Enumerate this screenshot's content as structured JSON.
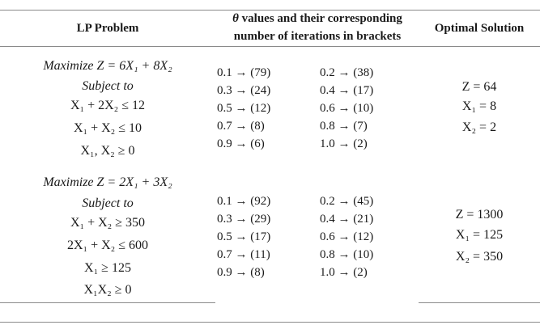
{
  "header": {
    "col1": "LP Problem",
    "col2_symbol": "θ",
    "col2_line1": " values and their corresponding",
    "col2_line2": "number of iterations in brackets",
    "col3": "Optimal Solution"
  },
  "problems": [
    {
      "lines": [
        "Maximize  Z = 6X₁ + 8X₂",
        "Subject to",
        "X₁ + 2X₂ ≤ 12",
        "X₁ + X₂ ≤ 10",
        "X₁, X₂ ≥ 0"
      ],
      "iterations": [
        [
          "0.1  →  (79)",
          "0.2  →  (38)"
        ],
        [
          "0.3  →  (24)",
          "0.4  →  (17)"
        ],
        [
          "0.5  →  (12)",
          "0.6  →  (10)"
        ],
        [
          "0.7  →  (8)",
          "0.8  →  (7)"
        ],
        [
          "0.9  →  (6)",
          "1.0  →  (2)"
        ]
      ],
      "solution": [
        "Z = 64",
        "X₁ = 8",
        "X₂ = 2"
      ]
    },
    {
      "lines": [
        "Maximize  Z = 2X₁ + 3X₂",
        "Subject to",
        "X₁ + X₂ ≥ 350",
        "2X₁ + X₂ ≤ 600",
        "X₁ ≥ 125",
        "X₁X₂ ≥ 0"
      ],
      "iterations": [
        [
          "0.1  →  (92)",
          "0.2  →  (45)"
        ],
        [
          "0.3  →  (29)",
          "0.4  →  (21)"
        ],
        [
          "0.5  →  (17)",
          "0.6  →  (12)"
        ],
        [
          "0.7  →  (11)",
          "0.8  →  (10)"
        ],
        [
          "0.9  →  (8)",
          "1.0  →  (2)"
        ]
      ],
      "solution": [
        "Z = 1300",
        "X₁ = 125",
        "X₂ = 350"
      ]
    }
  ]
}
